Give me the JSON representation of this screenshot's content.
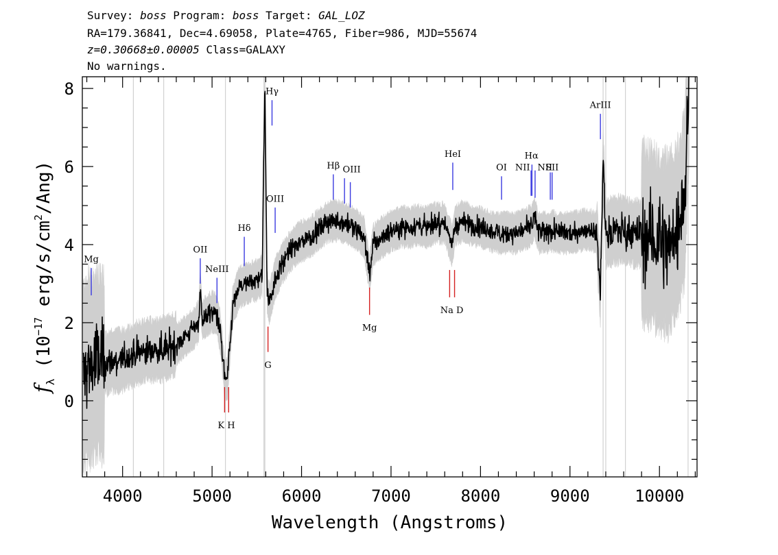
{
  "header": {
    "line1": {
      "survey_label": "Survey: ",
      "survey": "boss",
      "program_label": " Program: ",
      "program": "boss",
      "target_label": " Target: ",
      "target": "GAL_LOZ"
    },
    "line2": "RA=179.36841, Dec=4.69058, Plate=4765, Fiber=986, MJD=55674",
    "line3": {
      "z": "z=0.30668±0.00005",
      "class": " Class=GALAXY"
    },
    "line4": "No warnings."
  },
  "colors": {
    "flux": "#000000",
    "error": "#cfcfcf",
    "emission": "#3a3ae0",
    "absorption": "#d42020",
    "sky_lines": "#c8c8c8",
    "axis": "#000000"
  },
  "chart_data": {
    "type": "line",
    "xlabel": "Wavelength (Angstroms)",
    "ylabel": "fλ (10^-17 erg/s/cm^2/Ang)",
    "ylabel_parts": {
      "f": "f",
      "sub": "λ",
      "pre": " (10",
      "exp1": "−17",
      "mid": " erg/s/cm",
      "exp2": "2",
      "post": "/Ang)"
    },
    "xlim": [
      3550,
      10420
    ],
    "ylim": [
      -1.95,
      8.3
    ],
    "xticks": [
      4000,
      5000,
      6000,
      7000,
      8000,
      9000,
      10000
    ],
    "xtick_labels": [
      "4000",
      "5000",
      "6000",
      "7000",
      "8000",
      "9000",
      "10000"
    ],
    "xminor_step": 200,
    "yticks": [
      0,
      2,
      4,
      6,
      8
    ],
    "ytick_labels": [
      "0",
      "2",
      "4",
      "6",
      "8"
    ],
    "yminor_step": 0.5,
    "sky_lines": [
      4120,
      4460,
      5150,
      5580,
      5590,
      9370,
      9400,
      9620,
      10320
    ],
    "spectrum_knots": [
      [
        3560,
        0.6
      ],
      [
        3620,
        0.85
      ],
      [
        3700,
        1.0
      ],
      [
        3800,
        0.95
      ],
      [
        3900,
        1.0
      ],
      [
        4000,
        1.05
      ],
      [
        4100,
        1.15
      ],
      [
        4200,
        1.25
      ],
      [
        4300,
        1.3
      ],
      [
        4400,
        1.3
      ],
      [
        4500,
        1.35
      ],
      [
        4600,
        1.45
      ],
      [
        4700,
        1.65
      ],
      [
        4800,
        1.85
      ],
      [
        4850,
        2.05
      ],
      [
        4868,
        2.85
      ],
      [
        4890,
        2.05
      ],
      [
        4950,
        2.2
      ],
      [
        5000,
        2.3
      ],
      [
        5050,
        2.2
      ],
      [
        5090,
        1.8
      ],
      [
        5140,
        0.6
      ],
      [
        5170,
        0.55
      ],
      [
        5200,
        1.4
      ],
      [
        5230,
        2.4
      ],
      [
        5300,
        2.9
      ],
      [
        5400,
        3.0
      ],
      [
        5500,
        3.1
      ],
      [
        5560,
        3.2
      ],
      [
        5590,
        8.3
      ],
      [
        5615,
        2.8
      ],
      [
        5640,
        2.5
      ],
      [
        5700,
        3.1
      ],
      [
        5800,
        3.6
      ],
      [
        5900,
        3.9
      ],
      [
        6000,
        4.1
      ],
      [
        6100,
        4.2
      ],
      [
        6200,
        4.4
      ],
      [
        6300,
        4.6
      ],
      [
        6400,
        4.6
      ],
      [
        6500,
        4.55
      ],
      [
        6600,
        4.4
      ],
      [
        6700,
        4.2
      ],
      [
        6760,
        3.25
      ],
      [
        6800,
        4.0
      ],
      [
        6900,
        4.2
      ],
      [
        7000,
        4.35
      ],
      [
        7100,
        4.45
      ],
      [
        7200,
        4.45
      ],
      [
        7300,
        4.5
      ],
      [
        7400,
        4.45
      ],
      [
        7500,
        4.55
      ],
      [
        7600,
        4.55
      ],
      [
        7680,
        4.0
      ],
      [
        7720,
        4.5
      ],
      [
        7800,
        4.6
      ],
      [
        7900,
        4.5
      ],
      [
        8000,
        4.45
      ],
      [
        8100,
        4.35
      ],
      [
        8200,
        4.3
      ],
      [
        8300,
        4.3
      ],
      [
        8400,
        4.3
      ],
      [
        8500,
        4.4
      ],
      [
        8580,
        4.5
      ],
      [
        8600,
        4.75
      ],
      [
        8650,
        4.3
      ],
      [
        8700,
        4.3
      ],
      [
        8800,
        4.35
      ],
      [
        8900,
        4.3
      ],
      [
        9000,
        4.3
      ],
      [
        9100,
        4.35
      ],
      [
        9200,
        4.4
      ],
      [
        9300,
        4.3
      ],
      [
        9340,
        2.8
      ],
      [
        9370,
        6.3
      ],
      [
        9400,
        4.3
      ],
      [
        9500,
        4.35
      ],
      [
        9600,
        4.4
      ],
      [
        9700,
        4.3
      ],
      [
        9800,
        4.3
      ],
      [
        9900,
        4.2
      ],
      [
        10000,
        4.1
      ],
      [
        10100,
        4.0
      ],
      [
        10200,
        4.3
      ],
      [
        10280,
        5.2
      ],
      [
        10330,
        8.3
      ]
    ],
    "emission_lines": [
      {
        "label": "Mg",
        "x": 3650,
        "y0": 2.7,
        "y1": 3.4,
        "label_y": 3.55
      },
      {
        "label": "OII",
        "x": 4868,
        "y0": 3.0,
        "y1": 3.65,
        "label_y": 3.8
      },
      {
        "label": "NeIII",
        "x": 5055,
        "y0": 2.5,
        "y1": 3.15,
        "label_y": 3.3
      },
      {
        "label": "Hδ",
        "x": 5360,
        "y0": 3.45,
        "y1": 4.2,
        "label_y": 4.35
      },
      {
        "label": "Hγ",
        "x": 5670,
        "y0": 7.05,
        "y1": 7.7,
        "label_y": 7.85
      },
      {
        "label": "OIII",
        "x": 5705,
        "y0": 4.3,
        "y1": 4.95,
        "label_y": 5.1
      },
      {
        "label": "Hβ",
        "x": 6355,
        "y0": 5.15,
        "y1": 5.8,
        "label_y": 5.95
      },
      {
        "label": "OIII",
        "x": 6480,
        "y0": 5.05,
        "y1": 5.7,
        "label_y": 5.85
      },
      {
        "label": "OIII",
        "x": 6545,
        "y0": 4.95,
        "y1": 5.6,
        "label_y": 5.85
      },
      {
        "label": "HeI",
        "x": 7690,
        "y0": 5.4,
        "y1": 6.1,
        "label_y": 6.25
      },
      {
        "label": "OI",
        "x": 8235,
        "y0": 5.15,
        "y1": 5.75,
        "label_y": 5.9
      },
      {
        "label": "NII",
        "x": 8565,
        "y0": 5.25,
        "y1": 5.9,
        "label_y": 5.9
      },
      {
        "label": "Hα",
        "x": 8575,
        "y0": 5.25,
        "y1": 6.05,
        "label_y": 6.2
      },
      {
        "label": "NII",
        "x": 8610,
        "y0": 5.2,
        "y1": 5.9,
        "label_y": 5.9
      },
      {
        "label": "SII",
        "x": 8780,
        "y0": 5.15,
        "y1": 5.85,
        "label_y": 5.9
      },
      {
        "label": "SII",
        "x": 8800,
        "y0": 5.15,
        "y1": 5.85,
        "label_y": 5.9
      },
      {
        "label": "ArIII",
        "x": 9340,
        "y0": 6.7,
        "y1": 7.35,
        "label_y": 7.5
      }
    ],
    "emission_label_positions": [
      {
        "text": "Mg",
        "x": 3650,
        "y": 3.55
      },
      {
        "text": "OII",
        "x": 4868,
        "y": 3.8
      },
      {
        "text": "NeIII",
        "x": 5055,
        "y": 3.3
      },
      {
        "text": "Hδ",
        "x": 5360,
        "y": 4.35
      },
      {
        "text": "Hγ",
        "x": 5670,
        "y": 7.85
      },
      {
        "text": "OIII",
        "x": 5705,
        "y": 5.1
      },
      {
        "text": "Hβ",
        "x": 6355,
        "y": 5.95
      },
      {
        "text": "OIII",
        "x": 6560,
        "y": 5.85
      },
      {
        "text": "HeI",
        "x": 7690,
        "y": 6.25
      },
      {
        "text": "OI",
        "x": 8235,
        "y": 5.9
      },
      {
        "text": "NII",
        "x": 8470,
        "y": 5.9
      },
      {
        "text": "Hα",
        "x": 8570,
        "y": 6.2
      },
      {
        "text": "NII",
        "x": 8720,
        "y": 5.9
      },
      {
        "text": "SII",
        "x": 8800,
        "y": 5.9
      },
      {
        "text": "ArIII",
        "x": 9340,
        "y": 7.5
      }
    ],
    "absorption_lines": [
      {
        "label": "K",
        "x": 5140,
        "y0": -0.3,
        "y1": 0.35
      },
      {
        "label": "H",
        "x": 5185,
        "y0": -0.3,
        "y1": 0.35
      },
      {
        "label": "G",
        "x": 5625,
        "y0": 1.25,
        "y1": 1.9
      },
      {
        "label": "Mg",
        "x": 6760,
        "y0": 2.2,
        "y1": 2.9
      },
      {
        "label": "Na",
        "x": 7655,
        "y0": 2.65,
        "y1": 3.35
      },
      {
        "label": "D",
        "x": 7710,
        "y0": 2.65,
        "y1": 3.35
      }
    ],
    "absorption_label_positions": [
      {
        "text": "K H",
        "x": 5160,
        "y": -0.6
      },
      {
        "text": "G",
        "x": 5625,
        "y": 0.95
      },
      {
        "text": "Mg",
        "x": 6760,
        "y": 1.9
      },
      {
        "text": "Na  D",
        "x": 7680,
        "y": 2.35
      }
    ]
  }
}
